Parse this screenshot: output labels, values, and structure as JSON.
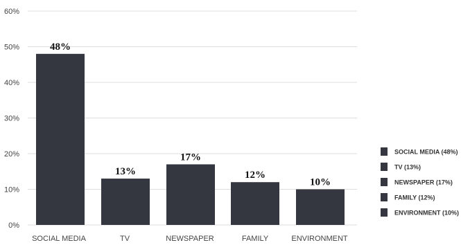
{
  "chart_data": {
    "type": "bar",
    "categories": [
      "SOCIAL MEDIA",
      "TV",
      "NEWSPAPER",
      "FAMILY",
      "ENVIRONMENT"
    ],
    "values": [
      48,
      13,
      17,
      12,
      10
    ],
    "data_labels": [
      "48%",
      "13%",
      "17%",
      "12%",
      "10%"
    ],
    "ylim": [
      0,
      60
    ],
    "yticks": [
      0,
      10,
      20,
      30,
      40,
      50,
      60
    ],
    "ytick_labels": [
      "0%",
      "10%",
      "20%",
      "30%",
      "40%",
      "50%",
      "60%"
    ],
    "legend": {
      "placement": "right",
      "entries": [
        "SOCIAL MEDIA (48%)",
        "TV (13%)",
        "NEWSPAPER (17%)",
        "FAMILY (12%)",
        "ENVIRONMENT (10%)"
      ]
    },
    "grid": true,
    "bar_color": "#353740",
    "grid_color": "#dddddd"
  }
}
